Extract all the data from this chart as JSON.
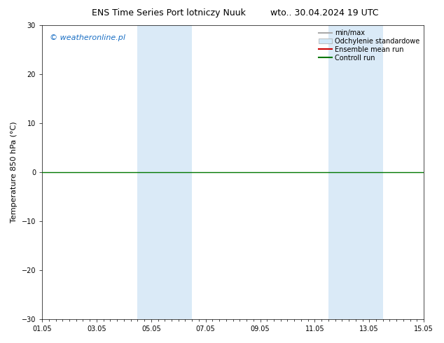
{
  "title_left": "ENS Time Series Port lotniczy Nuuk",
  "title_right": "wto.. 30.04.2024 19 UTC",
  "ylabel": "Temperature 850 hPa (°C)",
  "watermark": "© weatheronline.pl",
  "watermark_color": "#1a6fc4",
  "ylim": [
    -30,
    30
  ],
  "yticks": [
    -30,
    -20,
    -10,
    0,
    10,
    20,
    30
  ],
  "xlim_start": 0,
  "xlim_end": 14,
  "xtick_labels": [
    "01.05",
    "03.05",
    "05.05",
    "07.05",
    "09.05",
    "11.05",
    "13.05",
    "15.05"
  ],
  "xtick_positions": [
    0,
    2,
    4,
    6,
    8,
    10,
    12,
    14
  ],
  "background_color": "#ffffff",
  "plot_bg_color": "#ffffff",
  "shaded_regions": [
    {
      "x_start": 3.5,
      "x_end": 4.5,
      "color": "#daeaf7"
    },
    {
      "x_start": 4.5,
      "x_end": 5.5,
      "color": "#daeaf7"
    },
    {
      "x_start": 10.5,
      "x_end": 11.5,
      "color": "#daeaf7"
    },
    {
      "x_start": 11.5,
      "x_end": 12.5,
      "color": "#daeaf7"
    }
  ],
  "hline_y": 0,
  "hline_color": "#007700",
  "hline_lw": 1.0,
  "legend_entries": [
    {
      "label": "min/max",
      "color": "#aaaaaa",
      "lw": 1.5,
      "ls": "-",
      "type": "line"
    },
    {
      "label": "Odchylenie standardowe",
      "color": "#d0e8f8",
      "lw": 8,
      "ls": "-",
      "type": "patch"
    },
    {
      "label": "Ensemble mean run",
      "color": "#cc0000",
      "lw": 1.5,
      "ls": "-",
      "type": "line"
    },
    {
      "label": "Controll run",
      "color": "#007700",
      "lw": 1.5,
      "ls": "-",
      "type": "line"
    }
  ],
  "title_fontsize": 9,
  "axis_fontsize": 8,
  "tick_fontsize": 7,
  "watermark_fontsize": 8,
  "legend_fontsize": 7
}
